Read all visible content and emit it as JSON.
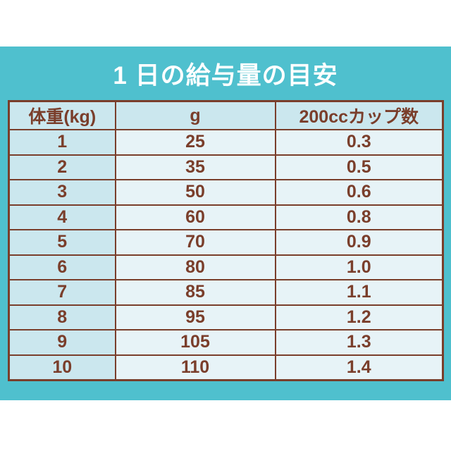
{
  "panel": {
    "background_color": "#4fc0ce",
    "title": "1 日の給与量の目安",
    "title_color": "#ffffff"
  },
  "colors": {
    "border_and_text": "#7a3e2b",
    "header_and_weight_column_bg": "#cbe7ee",
    "value_cell_bg": "#e7f3f7",
    "page_bg": "#ffffff"
  },
  "chart_data": {
    "type": "table",
    "title": "1 日の給与量の目安",
    "headers": [
      "体重(kg)",
      "g",
      "200ccカップ数"
    ],
    "rows": [
      [
        "1",
        "25",
        "0.3"
      ],
      [
        "2",
        "35",
        "0.5"
      ],
      [
        "3",
        "50",
        "0.6"
      ],
      [
        "4",
        "60",
        "0.8"
      ],
      [
        "5",
        "70",
        "0.9"
      ],
      [
        "6",
        "80",
        "1.0"
      ],
      [
        "7",
        "85",
        "1.1"
      ],
      [
        "8",
        "95",
        "1.2"
      ],
      [
        "9",
        "105",
        "1.3"
      ],
      [
        "10",
        "110",
        "1.4"
      ]
    ]
  }
}
